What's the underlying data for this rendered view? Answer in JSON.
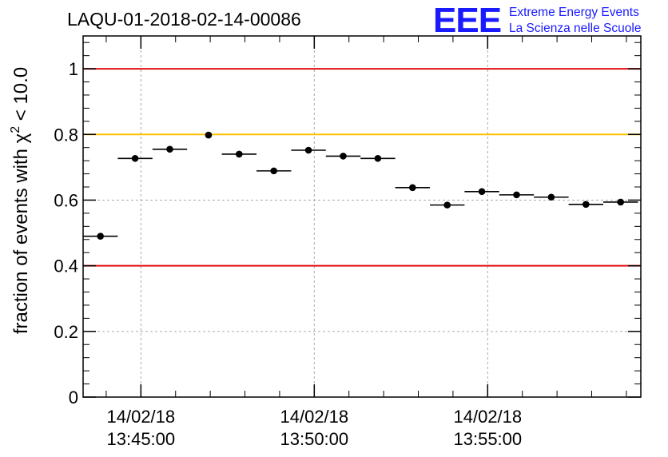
{
  "chart_data": {
    "type": "scatter",
    "title": "LAQU-01-2018-02-14-00086",
    "ylabel_main": "fraction of events with ",
    "ylabel_chi": "χ",
    "ylabel_sup": "2",
    "ylabel_tail": " < 10.0",
    "logo": {
      "letters": "EEE",
      "line1": "Extreme Energy Events",
      "line2": "La Scienza nelle Scuole",
      "color": "#1a1aff"
    },
    "ylim": [
      0,
      1.1
    ],
    "y_ticks": [
      {
        "value": 0,
        "label": "0"
      },
      {
        "value": 0.2,
        "label": "0.2"
      },
      {
        "value": 0.4,
        "label": "0.4"
      },
      {
        "value": 0.6,
        "label": "0.6"
      },
      {
        "value": 0.8,
        "label": "0.8"
      },
      {
        "value": 1,
        "label": "1"
      }
    ],
    "x_ticks": [
      {
        "time": "13:45:00",
        "date": "14/02/18"
      },
      {
        "time": "13:50:00",
        "date": "14/02/18"
      },
      {
        "time": "13:55:00",
        "date": "14/02/18"
      }
    ],
    "x_range": [
      "13:43:20",
      "13:59:25"
    ],
    "reference_lines": [
      {
        "value": 1.0,
        "color": "#e01010"
      },
      {
        "value": 0.8,
        "color": "#ffc000"
      },
      {
        "value": 0.4,
        "color": "#e01010"
      }
    ],
    "grid": true,
    "points": [
      {
        "start": "13:43:20",
        "end": "13:44:20",
        "value": 0.49
      },
      {
        "start": "13:44:20",
        "end": "13:45:20",
        "value": 0.727
      },
      {
        "start": "13:45:20",
        "end": "13:46:20",
        "value": 0.755
      },
      {
        "start": "13:46:52",
        "end": "13:47:02",
        "value": 0.798
      },
      {
        "start": "13:47:20",
        "end": "13:48:20",
        "value": 0.74
      },
      {
        "start": "13:48:20",
        "end": "13:49:20",
        "value": 0.689
      },
      {
        "start": "13:49:20",
        "end": "13:50:20",
        "value": 0.752
      },
      {
        "start": "13:50:20",
        "end": "13:51:20",
        "value": 0.734
      },
      {
        "start": "13:51:20",
        "end": "13:52:20",
        "value": 0.727
      },
      {
        "start": "13:52:20",
        "end": "13:53:20",
        "value": 0.638
      },
      {
        "start": "13:53:20",
        "end": "13:54:20",
        "value": 0.585
      },
      {
        "start": "13:54:20",
        "end": "13:55:20",
        "value": 0.626
      },
      {
        "start": "13:55:20",
        "end": "13:56:20",
        "value": 0.616
      },
      {
        "start": "13:56:20",
        "end": "13:57:20",
        "value": 0.609
      },
      {
        "start": "13:57:20",
        "end": "13:58:20",
        "value": 0.587
      },
      {
        "start": "13:58:20",
        "end": "13:59:20",
        "value": 0.594
      }
    ]
  }
}
